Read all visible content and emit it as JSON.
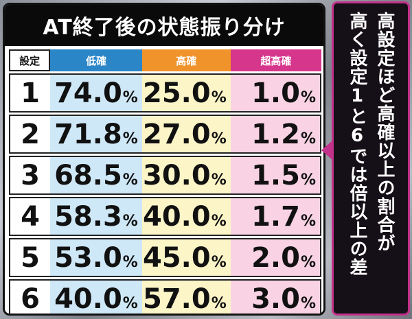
{
  "title": "AT終了後の状態振り分け",
  "headers": {
    "setting": "設定",
    "low": "低確",
    "high": "高確",
    "super": "超高確"
  },
  "percent_symbol": "%",
  "rows": [
    {
      "setting": "1",
      "low": "74.0",
      "high": "25.0",
      "super": "1.0"
    },
    {
      "setting": "2",
      "low": "71.8",
      "high": "27.0",
      "super": "1.2"
    },
    {
      "setting": "3",
      "low": "68.5",
      "high": "30.0",
      "super": "1.5"
    },
    {
      "setting": "4",
      "low": "58.3",
      "high": "40.0",
      "super": "1.7"
    },
    {
      "setting": "5",
      "low": "53.0",
      "high": "45.0",
      "super": "2.0"
    },
    {
      "setting": "6",
      "low": "40.0",
      "high": "57.0",
      "super": "3.0"
    }
  ],
  "note": {
    "line1": "高設定ほど高確以上の割合が",
    "line2": "高く設定1と6では倍以上の差"
  },
  "colors": {
    "low_header": "#2b86c8",
    "high_header": "#f0932b",
    "super_header": "#d6368c",
    "note_border": "#c2318a"
  }
}
